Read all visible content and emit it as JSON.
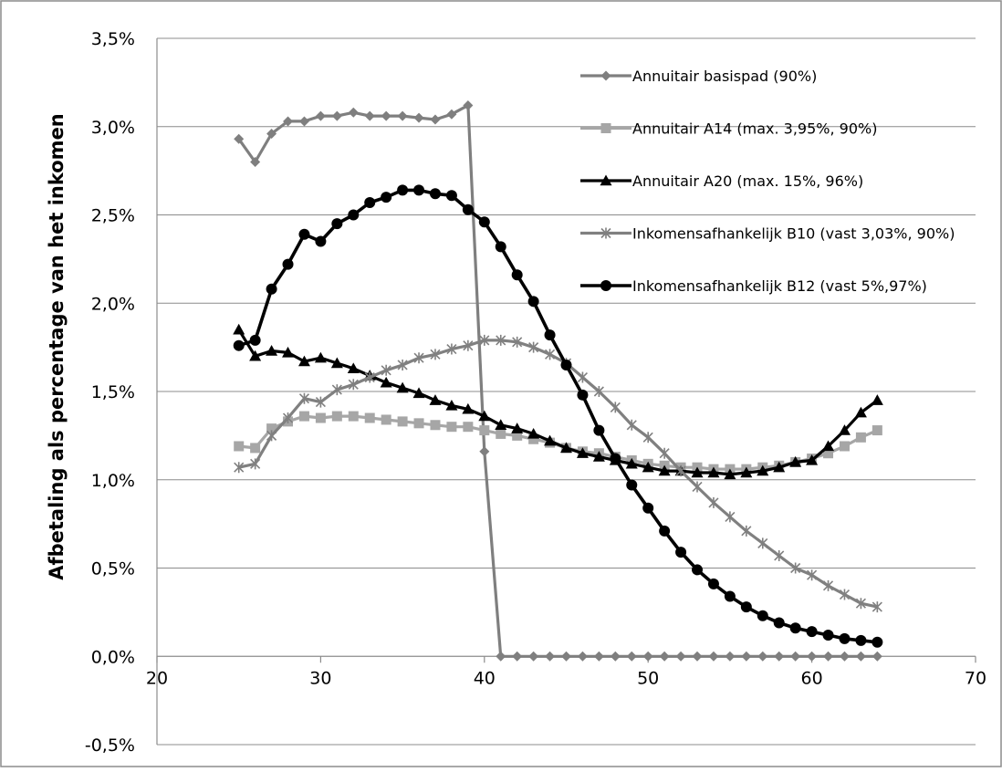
{
  "chart_data": {
    "type": "line",
    "title": "",
    "xlabel": "",
    "ylabel": "Afbetaling als percentage van het inkomen",
    "xlim": [
      20,
      70
    ],
    "ylim": [
      -0.5,
      3.5
    ],
    "x_ticks": [
      20,
      30,
      40,
      50,
      60,
      70
    ],
    "x_tick_labels": [
      "20",
      "30",
      "40",
      "50",
      "60",
      "70"
    ],
    "y_ticks": [
      -0.5,
      0,
      0.5,
      1,
      1.5,
      2,
      2.5,
      3,
      3.5
    ],
    "y_tick_labels": [
      "-0,5%",
      "0,0%",
      "0,5%",
      "1,0%",
      "1,5%",
      "2,0%",
      "2,5%",
      "3,0%",
      "3,5%"
    ],
    "grid": "horizontal",
    "legend_position": "top-right",
    "x": [
      25,
      26,
      27,
      28,
      29,
      30,
      31,
      32,
      33,
      34,
      35,
      36,
      37,
      38,
      39,
      40,
      41,
      42,
      43,
      44,
      45,
      46,
      47,
      48,
      49,
      50,
      51,
      52,
      53,
      54,
      55,
      56,
      57,
      58,
      59,
      60,
      61,
      62,
      63,
      64
    ],
    "series": [
      {
        "name": "Annuitair basispad (90%)",
        "color": "#7f7f7f",
        "marker": "diamond",
        "values": [
          2.93,
          2.8,
          2.96,
          3.03,
          3.03,
          3.06,
          3.06,
          3.08,
          3.06,
          3.06,
          3.06,
          3.05,
          3.04,
          3.07,
          3.12,
          1.16,
          0.0,
          0.0,
          0.0,
          0.0,
          0.0,
          0.0,
          0.0,
          0.0,
          0.0,
          0.0,
          0.0,
          0.0,
          0.0,
          0.0,
          0.0,
          0.0,
          0.0,
          0.0,
          0.0,
          0.0,
          0.0,
          0.0,
          0.0,
          0.0
        ]
      },
      {
        "name": "Annuitair A14 (max. 3,95%, 90%)",
        "color": "#a6a6a6",
        "marker": "square",
        "values": [
          1.19,
          1.18,
          1.29,
          1.33,
          1.36,
          1.35,
          1.36,
          1.36,
          1.35,
          1.34,
          1.33,
          1.32,
          1.31,
          1.3,
          1.3,
          1.28,
          1.26,
          1.25,
          1.23,
          1.21,
          1.18,
          1.16,
          1.15,
          1.13,
          1.11,
          1.09,
          1.08,
          1.07,
          1.07,
          1.06,
          1.06,
          1.06,
          1.07,
          1.08,
          1.1,
          1.12,
          1.15,
          1.19,
          1.24,
          1.28
        ]
      },
      {
        "name": "Annuitair A20 (max. 15%, 96%)",
        "color": "#000000",
        "marker": "triangle",
        "values": [
          1.85,
          1.7,
          1.73,
          1.72,
          1.67,
          1.69,
          1.66,
          1.63,
          1.59,
          1.55,
          1.52,
          1.49,
          1.45,
          1.42,
          1.4,
          1.36,
          1.31,
          1.29,
          1.26,
          1.22,
          1.18,
          1.15,
          1.13,
          1.11,
          1.09,
          1.07,
          1.05,
          1.05,
          1.04,
          1.04,
          1.03,
          1.04,
          1.05,
          1.07,
          1.1,
          1.11,
          1.19,
          1.28,
          1.38,
          1.45
        ]
      },
      {
        "name": "Inkomensafhankelijk B10 (vast 3,03%, 90%)",
        "color": "#808080",
        "marker": "star",
        "values": [
          1.07,
          1.09,
          1.25,
          1.35,
          1.46,
          1.44,
          1.51,
          1.54,
          1.58,
          1.62,
          1.65,
          1.69,
          1.71,
          1.74,
          1.76,
          1.79,
          1.79,
          1.78,
          1.75,
          1.71,
          1.66,
          1.58,
          1.5,
          1.41,
          1.31,
          1.24,
          1.15,
          1.05,
          0.96,
          0.87,
          0.79,
          0.71,
          0.64,
          0.57,
          0.5,
          0.46,
          0.4,
          0.35,
          0.3,
          0.28
        ]
      },
      {
        "name": "Inkomensafhankelijk B12 (vast 5%,97%)",
        "color": "#000000",
        "marker": "circle",
        "values": [
          1.76,
          1.79,
          2.08,
          2.22,
          2.39,
          2.35,
          2.45,
          2.5,
          2.57,
          2.6,
          2.64,
          2.64,
          2.62,
          2.61,
          2.53,
          2.46,
          2.32,
          2.16,
          2.01,
          1.82,
          1.65,
          1.48,
          1.28,
          1.12,
          0.97,
          0.84,
          0.71,
          0.59,
          0.49,
          0.41,
          0.34,
          0.28,
          0.23,
          0.19,
          0.16,
          0.14,
          0.12,
          0.1,
          0.09,
          0.08
        ]
      }
    ]
  }
}
